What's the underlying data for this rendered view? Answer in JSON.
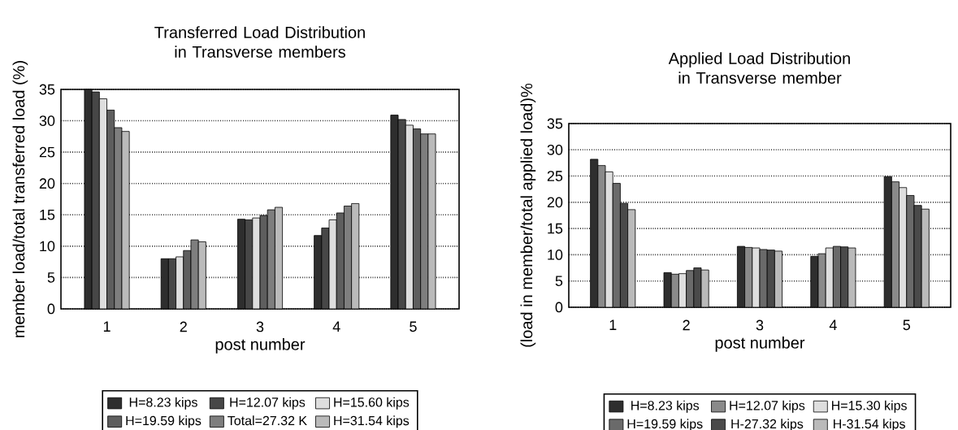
{
  "chart_data": [
    {
      "type": "bar",
      "title": "Transferred Load Distribution in Transverse members",
      "xlabel": "post number",
      "ylabel": "member load/total transferred load (%)",
      "categories": [
        "1",
        "2",
        "3",
        "4",
        "5"
      ],
      "ylim": [
        0,
        35
      ],
      "yticks": [
        0,
        5,
        10,
        15,
        20,
        25,
        30,
        35
      ],
      "grid": "y",
      "legend": "bottom",
      "series": [
        {
          "name": "H=8.23 kips",
          "color": "#2e2e2e",
          "values": [
            35.0,
            8.0,
            14.3,
            11.7,
            30.9
          ]
        },
        {
          "name": "H=12.07 kips",
          "color": "#474747",
          "values": [
            34.6,
            8.0,
            14.2,
            12.9,
            30.2
          ]
        },
        {
          "name": "H=15.60 kips",
          "color": "#dedede",
          "values": [
            33.5,
            8.3,
            14.5,
            14.2,
            29.3
          ]
        },
        {
          "name": "H=19.59 kips",
          "color": "#5e5e5e",
          "values": [
            31.7,
            9.3,
            14.9,
            15.3,
            28.7
          ]
        },
        {
          "name": "Total=27.32 K",
          "color": "#7e7e7e",
          "values": [
            28.9,
            11.0,
            15.8,
            16.4,
            27.9
          ]
        },
        {
          "name": "H=31.54 kips",
          "color": "#bababa",
          "values": [
            28.3,
            10.7,
            16.2,
            16.8,
            27.9
          ]
        }
      ]
    },
    {
      "type": "bar",
      "title": "Applied Load Distribution in Transverse member",
      "xlabel": "post  number",
      "ylabel": "(load in member/total applied load)%",
      "categories": [
        "1",
        "2",
        "3",
        "4",
        "5"
      ],
      "ylim": [
        0,
        35
      ],
      "yticks": [
        0,
        5,
        10,
        15,
        20,
        25,
        30,
        35
      ],
      "grid": "y",
      "legend": "bottom",
      "series": [
        {
          "name": "H=8.23 kips",
          "color": "#2e2e2e",
          "values": [
            28.2,
            6.6,
            11.6,
            9.7,
            24.9
          ]
        },
        {
          "name": "H=12.07 kips",
          "color": "#8a8a8a",
          "values": [
            27.0,
            6.3,
            11.4,
            10.2,
            23.9
          ]
        },
        {
          "name": "H=15.30 kips",
          "color": "#dedede",
          "values": [
            25.8,
            6.4,
            11.3,
            11.3,
            22.8
          ]
        },
        {
          "name": "H=19.59 kips",
          "color": "#6a6a6a",
          "values": [
            23.6,
            7.0,
            11.0,
            11.6,
            21.3
          ]
        },
        {
          "name": "H-27.32 kips",
          "color": "#4a4a4a",
          "values": [
            19.8,
            7.5,
            10.9,
            11.5,
            19.4
          ]
        },
        {
          "name": "H-31.54 kips",
          "color": "#bababa",
          "values": [
            18.6,
            7.1,
            10.7,
            11.3,
            18.7
          ]
        }
      ]
    }
  ]
}
